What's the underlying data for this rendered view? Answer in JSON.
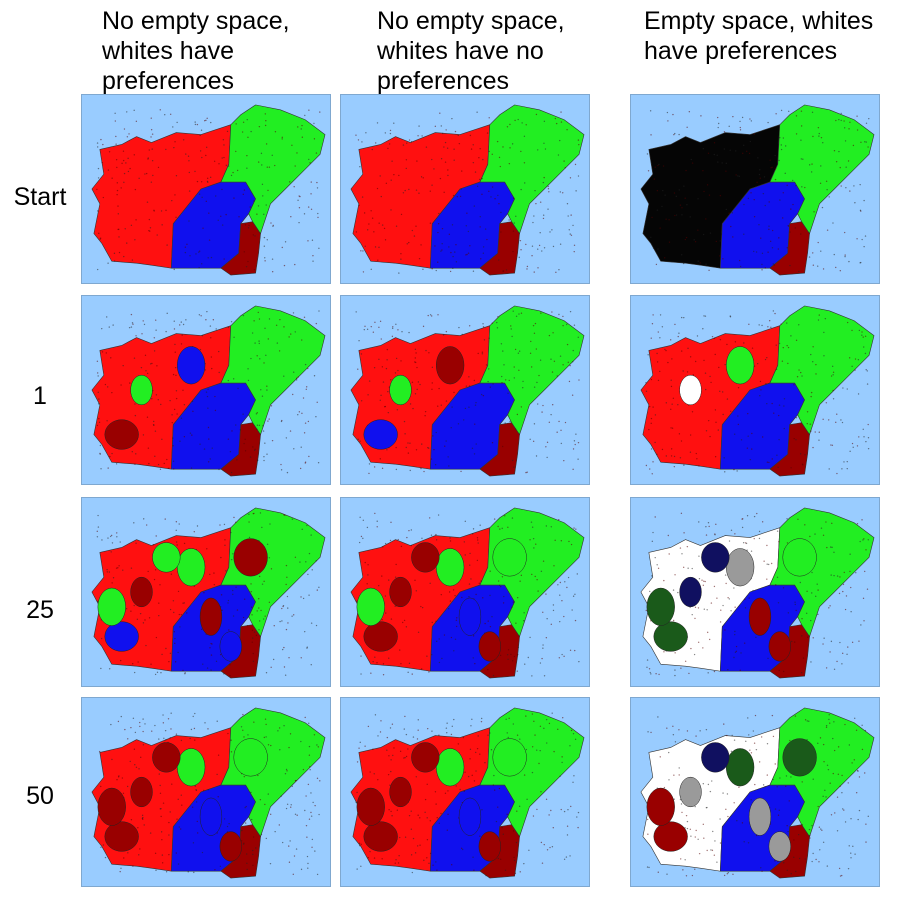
{
  "columns": [
    {
      "header": "No empty space,\nwhites have\npreferences"
    },
    {
      "header": "No empty space,\nwhites have no\npreferences"
    },
    {
      "header": "Empty space, whites\nhave preferences"
    }
  ],
  "rows": [
    {
      "label": "Start"
    },
    {
      "label": "1"
    },
    {
      "label": "25"
    },
    {
      "label": "50"
    }
  ],
  "colors": {
    "background": "#99ccff",
    "red": "#ff1010",
    "green": "#22ee22",
    "blue": "#1010ee",
    "darkred": "#990000",
    "black": "#050505",
    "white": "#ffffff",
    "gray": "#9a9a9a",
    "darkgreen": "#1a5a1a",
    "navy": "#101060"
  },
  "panels": [
    {
      "row": 0,
      "col": 0,
      "west": "red",
      "center": "blue",
      "south": "darkred",
      "east": "green",
      "blobs": []
    },
    {
      "row": 0,
      "col": 1,
      "west": "red",
      "center": "blue",
      "south": "darkred",
      "east": "green",
      "blobs": []
    },
    {
      "row": 0,
      "col": 2,
      "west": "black",
      "center": "blue",
      "south": "darkred",
      "east": "green",
      "blobs": []
    },
    {
      "row": 1,
      "col": 0,
      "west": "red",
      "center": "blue",
      "south": "darkred",
      "east": "green",
      "blobs": [
        "green",
        "blue",
        "darkred"
      ]
    },
    {
      "row": 1,
      "col": 1,
      "west": "red",
      "center": "blue",
      "south": "darkred",
      "east": "green",
      "blobs": [
        "green",
        "darkred",
        "blue"
      ]
    },
    {
      "row": 1,
      "col": 2,
      "west": "red",
      "center": "blue",
      "south": "darkred",
      "east": "green",
      "blobs": [
        "white",
        "green"
      ]
    },
    {
      "row": 2,
      "col": 0,
      "west": "red",
      "center": "blue",
      "south": "darkred",
      "east": "green",
      "blobs": [
        "darkred",
        "green",
        "blue",
        "darkred",
        "green",
        "darkred",
        "blue",
        "green"
      ]
    },
    {
      "row": 2,
      "col": 1,
      "west": "red",
      "center": "blue",
      "south": "darkred",
      "east": "green",
      "blobs": [
        "darkred",
        "green",
        "darkred",
        "blue",
        "darkred",
        "green",
        "darkred",
        "green"
      ]
    },
    {
      "row": 2,
      "col": 2,
      "west": "white",
      "center": "blue",
      "south": "darkred",
      "east": "green",
      "blobs": [
        "navy",
        "gray",
        "darkgreen",
        "darkred",
        "navy",
        "green",
        "darkred",
        "darkgreen"
      ]
    },
    {
      "row": 3,
      "col": 0,
      "west": "red",
      "center": "blue",
      "south": "darkred",
      "east": "green",
      "blobs": [
        "darkred",
        "green",
        "darkred",
        "blue",
        "darkred",
        "green",
        "darkred",
        "darkred"
      ]
    },
    {
      "row": 3,
      "col": 1,
      "west": "red",
      "center": "blue",
      "south": "darkred",
      "east": "green",
      "blobs": [
        "darkred",
        "green",
        "darkred",
        "blue",
        "darkred",
        "green",
        "darkred",
        "darkred"
      ]
    },
    {
      "row": 3,
      "col": 2,
      "west": "white",
      "center": "blue",
      "south": "darkred",
      "east": "green",
      "blobs": [
        "gray",
        "darkgreen",
        "darkred",
        "gray",
        "navy",
        "darkgreen",
        "gray",
        "darkred"
      ]
    }
  ]
}
